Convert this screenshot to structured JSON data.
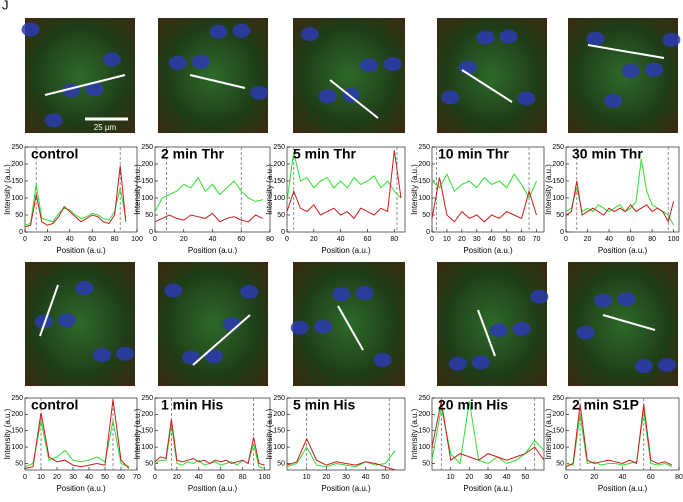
{
  "panel_label": "J",
  "scale_bar": "25 µm",
  "chart_data": [
    {
      "type": "line",
      "title": "control",
      "x_label": "Position (a.u.)",
      "y_label": "Intensity (a.u.)",
      "xlim": [
        0,
        100
      ],
      "xticks": [
        0,
        20,
        40,
        60,
        80,
        100
      ],
      "ylim": [
        0,
        250
      ],
      "yticks": [
        0,
        50,
        100,
        150,
        200,
        250
      ],
      "vlines": [
        10,
        85
      ],
      "x": [
        0,
        5,
        10,
        15,
        20,
        25,
        30,
        35,
        40,
        45,
        50,
        55,
        60,
        65,
        70,
        75,
        80,
        85,
        90
      ],
      "series": [
        {
          "color": "#2ee02e",
          "values": [
            20,
            25,
            140,
            40,
            35,
            30,
            55,
            70,
            65,
            50,
            40,
            45,
            55,
            50,
            40,
            35,
            60,
            130,
            40
          ]
        },
        {
          "color": "#c81e1e",
          "values": [
            15,
            20,
            110,
            30,
            20,
            25,
            45,
            75,
            60,
            45,
            30,
            40,
            50,
            45,
            30,
            25,
            50,
            195,
            30
          ]
        }
      ]
    },
    {
      "type": "line",
      "title": "2 min Thr",
      "x_label": "Position (a.u.)",
      "y_label": "Intensity (a.u.)",
      "xlim": [
        0,
        80
      ],
      "xticks": [
        0,
        20,
        40,
        60,
        80
      ],
      "ylim": [
        0,
        250
      ],
      "yticks": [
        0,
        50,
        100,
        150,
        200,
        250
      ],
      "vlines": [
        8,
        60
      ],
      "x": [
        0,
        5,
        10,
        15,
        20,
        25,
        30,
        35,
        40,
        45,
        50,
        55,
        60,
        65,
        70,
        75
      ],
      "series": [
        {
          "color": "#2ee02e",
          "values": [
            60,
            100,
            110,
            120,
            140,
            130,
            160,
            120,
            140,
            110,
            130,
            150,
            120,
            100,
            90,
            95
          ]
        },
        {
          "color": "#c81e1e",
          "values": [
            30,
            40,
            50,
            40,
            35,
            50,
            45,
            40,
            55,
            30,
            40,
            45,
            35,
            30,
            50,
            40
          ]
        }
      ]
    },
    {
      "type": "line",
      "title": "5 min Thr",
      "x_label": "Position (a.u.)",
      "y_label": "Intensity (a.u.)",
      "xlim": [
        0,
        88
      ],
      "xticks": [
        0,
        20,
        40,
        60,
        80
      ],
      "ylim": [
        0,
        250
      ],
      "yticks": [
        0,
        50,
        100,
        150,
        200,
        250
      ],
      "vlines": [
        5,
        82
      ],
      "x": [
        0,
        5,
        10,
        15,
        20,
        25,
        30,
        35,
        40,
        45,
        50,
        55,
        60,
        65,
        70,
        75,
        80,
        85
      ],
      "series": [
        {
          "color": "#2ee02e",
          "values": [
            90,
            235,
            150,
            160,
            130,
            150,
            160,
            130,
            150,
            130,
            160,
            140,
            150,
            165,
            130,
            150,
            120,
            100
          ]
        },
        {
          "color": "#c81e1e",
          "values": [
            60,
            120,
            70,
            60,
            80,
            50,
            60,
            70,
            50,
            60,
            40,
            70,
            60,
            50,
            70,
            60,
            240,
            100
          ]
        }
      ]
    },
    {
      "type": "line",
      "title": "10 min Thr",
      "x_label": "Position (a.u.)",
      "y_label": "Intensity (a.u.)",
      "xlim": [
        0,
        75
      ],
      "xticks": [
        0,
        10,
        20,
        30,
        40,
        50,
        60,
        70
      ],
      "ylim": [
        0,
        250
      ],
      "yticks": [
        0,
        50,
        100,
        150,
        200,
        250
      ],
      "vlines": [
        3,
        65
      ],
      "x": [
        0,
        5,
        10,
        15,
        20,
        25,
        30,
        35,
        40,
        45,
        50,
        55,
        60,
        65,
        70
      ],
      "series": [
        {
          "color": "#2ee02e",
          "values": [
            150,
            130,
            170,
            120,
            140,
            150,
            130,
            160,
            140,
            150,
            130,
            170,
            140,
            100,
            150
          ]
        },
        {
          "color": "#c81e1e",
          "values": [
            40,
            160,
            50,
            30,
            60,
            40,
            50,
            30,
            50,
            40,
            60,
            50,
            40,
            120,
            50
          ]
        }
      ]
    },
    {
      "type": "line",
      "title": "30 min Thr",
      "x_label": "Position (a.u.)",
      "y_label": "Intensity (a.u.)",
      "xlim": [
        0,
        105
      ],
      "xticks": [
        0,
        20,
        40,
        60,
        80,
        100
      ],
      "ylim": [
        0,
        250
      ],
      "yticks": [
        0,
        50,
        100,
        150,
        200,
        250
      ],
      "vlines": [
        10,
        95
      ],
      "x": [
        0,
        5,
        10,
        15,
        20,
        25,
        30,
        35,
        40,
        45,
        50,
        55,
        60,
        65,
        70,
        75,
        80,
        85,
        90,
        95,
        100
      ],
      "series": [
        {
          "color": "#2ee02e",
          "values": [
            60,
            70,
            130,
            60,
            70,
            60,
            80,
            70,
            60,
            70,
            80,
            60,
            70,
            90,
            215,
            120,
            80,
            70,
            60,
            50,
            20
          ]
        },
        {
          "color": "#c81e1e",
          "values": [
            50,
            60,
            150,
            50,
            60,
            70,
            60,
            50,
            70,
            60,
            70,
            60,
            80,
            60,
            70,
            80,
            60,
            70,
            60,
            30,
            90
          ]
        }
      ]
    },
    {
      "type": "line",
      "title": "control",
      "x_label": "Position (a.u.)",
      "y_label": "Intensity (a.u.)",
      "xlim": [
        0,
        70
      ],
      "xticks": [
        0,
        10,
        20,
        30,
        40,
        50,
        60,
        70
      ],
      "ylim": [
        30,
        250
      ],
      "yticks": [
        50,
        100,
        150,
        200,
        250
      ],
      "vlines": [
        10,
        55
      ],
      "x": [
        0,
        5,
        10,
        15,
        20,
        25,
        30,
        35,
        40,
        45,
        50,
        55,
        60,
        65
      ],
      "series": [
        {
          "color": "#2ee02e",
          "values": [
            40,
            50,
            180,
            60,
            70,
            90,
            60,
            55,
            60,
            70,
            55,
            180,
            50,
            40
          ]
        },
        {
          "color": "#c81e1e",
          "values": [
            35,
            40,
            205,
            70,
            55,
            60,
            45,
            40,
            45,
            50,
            45,
            245,
            60,
            35
          ]
        }
      ]
    },
    {
      "type": "line",
      "title": "1 min His",
      "x_label": "Position (a.u.)",
      "y_label": "Intensity (a.u.)",
      "xlim": [
        0,
        105
      ],
      "xticks": [
        0,
        20,
        40,
        60,
        80,
        100
      ],
      "ylim": [
        30,
        250
      ],
      "yticks": [
        50,
        100,
        150,
        200,
        250
      ],
      "vlines": [
        15,
        90
      ],
      "x": [
        0,
        5,
        10,
        15,
        20,
        25,
        30,
        35,
        40,
        45,
        50,
        55,
        60,
        65,
        70,
        75,
        80,
        85,
        90,
        95,
        100
      ],
      "series": [
        {
          "color": "#2ee02e",
          "values": [
            50,
            60,
            60,
            170,
            50,
            45,
            55,
            50,
            60,
            45,
            50,
            55,
            45,
            50,
            55,
            45,
            60,
            50,
            110,
            40,
            35
          ]
        },
        {
          "color": "#c81e1e",
          "values": [
            55,
            70,
            65,
            185,
            60,
            55,
            60,
            65,
            55,
            60,
            50,
            60,
            55,
            60,
            50,
            55,
            60,
            50,
            130,
            50,
            45
          ]
        }
      ]
    },
    {
      "type": "line",
      "title": "5 min His",
      "x_label": "Position (a.u.)",
      "y_label": "Intensity (a.u.)",
      "xlim": [
        0,
        60
      ],
      "xticks": [
        10,
        20,
        30,
        40,
        50
      ],
      "ylim": [
        30,
        250
      ],
      "yticks": [
        50,
        100,
        150,
        200,
        250
      ],
      "vlines": [
        10,
        52
      ],
      "x": [
        0,
        5,
        10,
        15,
        20,
        25,
        30,
        35,
        40,
        45,
        50,
        55
      ],
      "series": [
        {
          "color": "#2ee02e",
          "values": [
            40,
            50,
            100,
            45,
            40,
            50,
            45,
            40,
            55,
            45,
            50,
            90
          ]
        },
        {
          "color": "#c81e1e",
          "values": [
            45,
            55,
            125,
            60,
            45,
            55,
            50,
            45,
            55,
            50,
            40,
            30
          ]
        }
      ]
    },
    {
      "type": "line",
      "title": "20 min His",
      "x_label": "Position (a.u.)",
      "y_label": "Intensity (a.u.)",
      "xlim": [
        0,
        60
      ],
      "xticks": [
        10,
        20,
        30,
        40,
        50
      ],
      "ylim": [
        30,
        250
      ],
      "yticks": [
        50,
        100,
        150,
        200,
        250
      ],
      "vlines": [
        5,
        55
      ],
      "x": [
        0,
        5,
        10,
        15,
        20,
        25,
        30,
        35,
        40,
        45,
        50,
        55,
        60
      ],
      "series": [
        {
          "color": "#2ee02e",
          "values": [
            60,
            220,
            80,
            50,
            240,
            60,
            50,
            70,
            50,
            60,
            80,
            120,
            90
          ]
        },
        {
          "color": "#c81e1e",
          "values": [
            100,
            240,
            60,
            80,
            70,
            60,
            80,
            70,
            60,
            70,
            80,
            100,
            60
          ]
        }
      ]
    },
    {
      "type": "line",
      "title": "2 min S1P",
      "x_label": "Position (a.u.)",
      "y_label": "Intensity (a.u.)",
      "xlim": [
        0,
        80
      ],
      "xticks": [
        0,
        20,
        40,
        60,
        80
      ],
      "ylim": [
        30,
        250
      ],
      "yticks": [
        50,
        100,
        150,
        200,
        250
      ],
      "vlines": [
        10,
        55
      ],
      "x": [
        0,
        5,
        10,
        15,
        20,
        25,
        30,
        35,
        40,
        45,
        50,
        55,
        60,
        65,
        70,
        75
      ],
      "series": [
        {
          "color": "#2ee02e",
          "values": [
            50,
            45,
            200,
            50,
            55,
            45,
            50,
            50,
            45,
            50,
            55,
            210,
            50,
            45,
            50,
            40
          ]
        },
        {
          "color": "#c81e1e",
          "values": [
            40,
            50,
            230,
            60,
            50,
            55,
            60,
            55,
            50,
            60,
            50,
            230,
            60,
            50,
            55,
            45
          ]
        }
      ]
    }
  ]
}
